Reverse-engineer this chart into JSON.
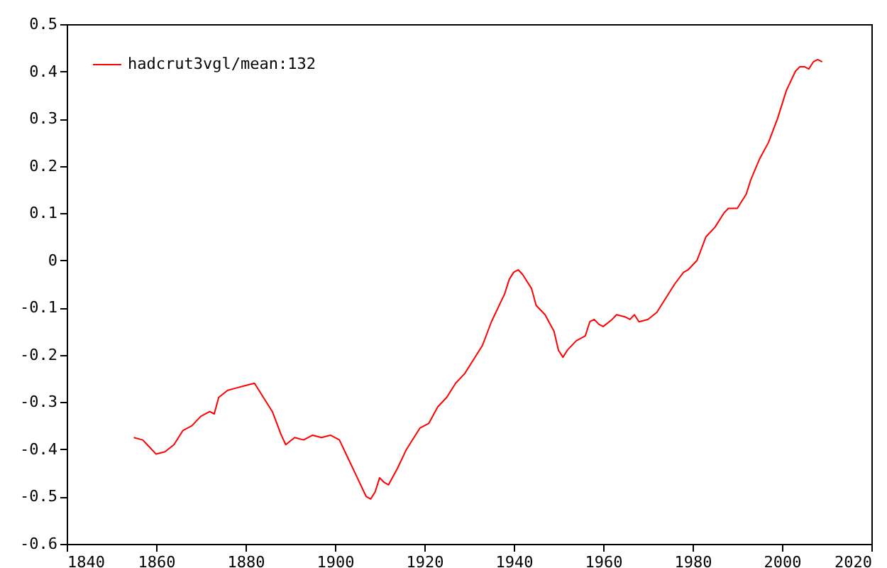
{
  "chart_data": {
    "type": "line",
    "legend": "top left",
    "grid": false,
    "marker": "none",
    "line_style": "solid",
    "x": [
      1855,
      1857,
      1858,
      1860,
      1862,
      1864,
      1866,
      1868,
      1870,
      1872,
      1873,
      1874,
      1876,
      1878,
      1880,
      1882,
      1884,
      1886,
      1888,
      1889,
      1891,
      1893,
      1895,
      1897,
      1899,
      1901,
      1903,
      1905,
      1907,
      1908,
      1909,
      1910,
      1911,
      1912,
      1914,
      1916,
      1918,
      1919,
      1921,
      1923,
      1925,
      1927,
      1929,
      1931,
      1933,
      1935,
      1937,
      1938,
      1939,
      1940,
      1941,
      1942,
      1944,
      1945,
      1947,
      1949,
      1950,
      1951,
      1952,
      1954,
      1956,
      1957,
      1958,
      1959,
      1960,
      1962,
      1963,
      1965,
      1966,
      1967,
      1968,
      1970,
      1972,
      1974,
      1976,
      1978,
      1979,
      1981,
      1983,
      1985,
      1987,
      1988,
      1990,
      1992,
      1993,
      1995,
      1997,
      1999,
      2001,
      2003,
      2004,
      2005,
      2006,
      2007,
      2008,
      2009
    ],
    "series": [
      {
        "name": "hadcrut3vgl/mean:132",
        "color": "#ff0000",
        "values": [
          -0.375,
          -0.38,
          -0.39,
          -0.41,
          -0.405,
          -0.39,
          -0.36,
          -0.35,
          -0.33,
          -0.32,
          -0.325,
          -0.29,
          -0.275,
          -0.27,
          -0.265,
          -0.26,
          -0.29,
          -0.32,
          -0.37,
          -0.39,
          -0.375,
          -0.38,
          -0.37,
          -0.375,
          -0.37,
          -0.38,
          -0.42,
          -0.46,
          -0.5,
          -0.505,
          -0.49,
          -0.46,
          -0.47,
          -0.475,
          -0.44,
          -0.4,
          -0.37,
          -0.355,
          -0.345,
          -0.31,
          -0.29,
          -0.26,
          -0.24,
          -0.21,
          -0.18,
          -0.13,
          -0.09,
          -0.07,
          -0.04,
          -0.025,
          -0.02,
          -0.03,
          -0.06,
          -0.095,
          -0.115,
          -0.15,
          -0.19,
          -0.205,
          -0.19,
          -0.17,
          -0.16,
          -0.13,
          -0.125,
          -0.135,
          -0.14,
          -0.125,
          -0.115,
          -0.12,
          -0.125,
          -0.115,
          -0.13,
          -0.125,
          -0.11,
          -0.08,
          -0.05,
          -0.025,
          -0.02,
          0.0,
          0.05,
          0.07,
          0.1,
          0.11,
          0.11,
          0.14,
          0.17,
          0.215,
          0.25,
          0.3,
          0.36,
          0.4,
          0.41,
          0.41,
          0.405,
          0.42,
          0.425,
          0.42
        ]
      }
    ],
    "xlim": [
      1840,
      2020
    ],
    "xticks": [
      1840,
      1860,
      1880,
      1900,
      1920,
      1940,
      1960,
      1980,
      2000,
      2020
    ],
    "ylim": [
      -0.6,
      0.5
    ],
    "yticks": [
      -0.6,
      -0.5,
      -0.4,
      -0.3,
      -0.2,
      -0.1,
      0,
      0.1,
      0.2,
      0.3,
      0.4,
      0.5
    ]
  }
}
